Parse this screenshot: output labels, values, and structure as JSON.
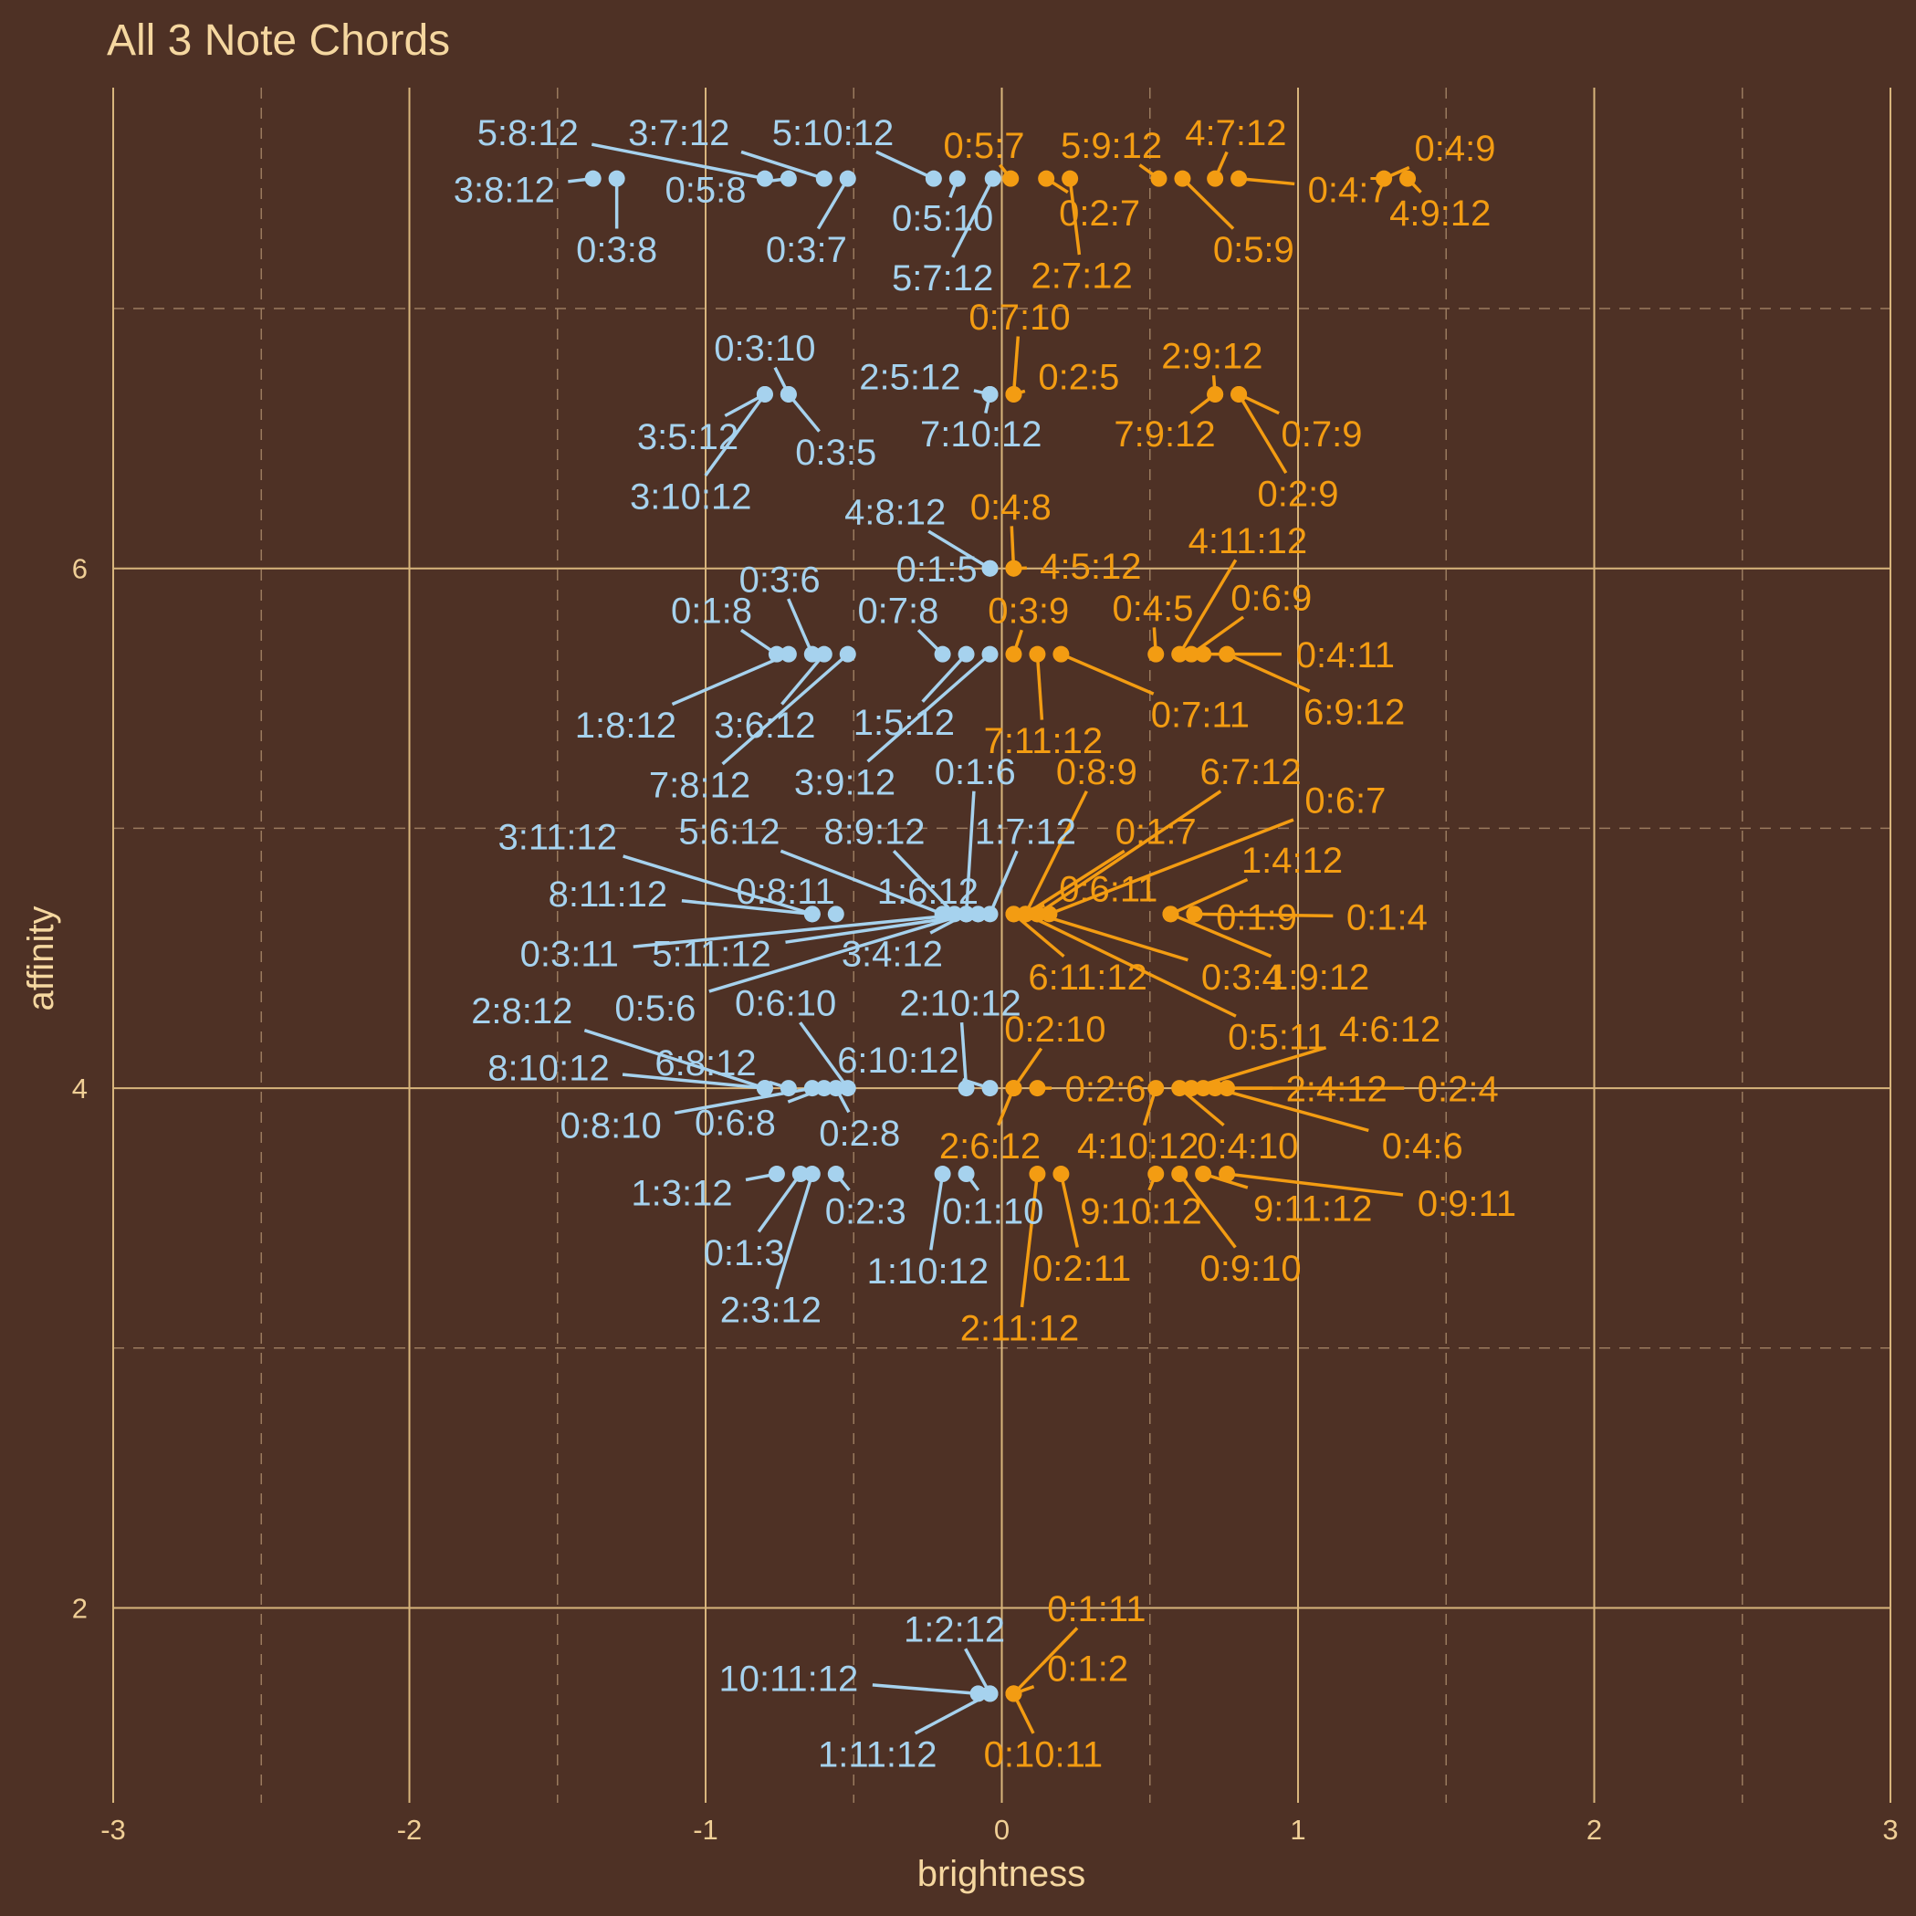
{
  "chart_data": {
    "type": "scatter",
    "title": "All 3 Note Chords",
    "xlabel": "brightness",
    "ylabel": "affinity",
    "xlim": [
      -3,
      3
    ],
    "ylim": [
      1.25,
      7.85
    ],
    "x_ticks": [
      -3,
      -2,
      -1,
      0,
      1,
      2,
      3
    ],
    "y_ticks": [
      2,
      4,
      6
    ],
    "grid": true,
    "legend": "none",
    "colors": {
      "background": "#4e3125",
      "grid_major": "#d8b57c",
      "grid_minor": "#9a7a5e",
      "text": "#f5d7a0",
      "negative": "#a6d2ee",
      "positive": "#f39c12"
    },
    "points": [
      {
        "label": "3:8:12",
        "x": -1.38,
        "y": 7.5,
        "c": "n",
        "lx": -1.68,
        "ly": 7.46
      },
      {
        "label": "0:3:8",
        "x": -1.3,
        "y": 7.5,
        "c": "n",
        "lx": -1.3,
        "ly": 7.23
      },
      {
        "label": "5:8:12",
        "x": -0.8,
        "y": 7.5,
        "c": "n",
        "lx": -1.6,
        "ly": 7.68
      },
      {
        "label": "0:5:8",
        "x": -0.72,
        "y": 7.5,
        "c": "n",
        "lx": -1.0,
        "ly": 7.46
      },
      {
        "label": "3:7:12",
        "x": -0.6,
        "y": 7.5,
        "c": "n",
        "lx": -1.09,
        "ly": 7.68
      },
      {
        "label": "0:3:7",
        "x": -0.52,
        "y": 7.5,
        "c": "n",
        "lx": -0.66,
        "ly": 7.23
      },
      {
        "label": "5:10:12",
        "x": -0.23,
        "y": 7.5,
        "c": "n",
        "lx": -0.57,
        "ly": 7.68
      },
      {
        "label": "0:5:10",
        "x": -0.15,
        "y": 7.5,
        "c": "n",
        "lx": -0.2,
        "ly": 7.35
      },
      {
        "label": "5:7:12",
        "x": -0.03,
        "y": 7.5,
        "c": "n",
        "lx": -0.2,
        "ly": 7.12
      },
      {
        "label": "0:5:7",
        "x": 0.03,
        "y": 7.5,
        "c": "p",
        "lx": -0.06,
        "ly": 7.63
      },
      {
        "label": "0:2:7",
        "x": 0.15,
        "y": 7.5,
        "c": "p",
        "lx": 0.33,
        "ly": 7.37
      },
      {
        "label": "2:7:12",
        "x": 0.23,
        "y": 7.5,
        "c": "p",
        "lx": 0.27,
        "ly": 7.13
      },
      {
        "label": "5:9:12",
        "x": 0.53,
        "y": 7.5,
        "c": "p",
        "lx": 0.37,
        "ly": 7.63
      },
      {
        "label": "0:5:9",
        "x": 0.61,
        "y": 7.5,
        "c": "p",
        "lx": 0.85,
        "ly": 7.23
      },
      {
        "label": "4:7:12",
        "x": 0.72,
        "y": 7.5,
        "c": "p",
        "lx": 0.79,
        "ly": 7.68
      },
      {
        "label": "0:4:7",
        "x": 0.8,
        "y": 7.5,
        "c": "p",
        "lx": 1.17,
        "ly": 7.46
      },
      {
        "label": "0:4:9",
        "x": 1.29,
        "y": 7.5,
        "c": "p",
        "lx": 1.53,
        "ly": 7.62
      },
      {
        "label": "4:9:12",
        "x": 1.37,
        "y": 7.5,
        "c": "p",
        "lx": 1.48,
        "ly": 7.37
      },
      {
        "label": "3:5:12",
        "x": -0.8,
        "y": 6.67,
        "c": "n",
        "lx": -1.06,
        "ly": 6.51
      },
      {
        "label": "3:10:12",
        "x": -0.8,
        "y": 6.67,
        "c": "n",
        "lx": -1.05,
        "ly": 6.28
      },
      {
        "label": "0:3:10",
        "x": -0.72,
        "y": 6.67,
        "c": "n",
        "lx": -0.8,
        "ly": 6.85
      },
      {
        "label": "0:3:5",
        "x": -0.72,
        "y": 6.67,
        "c": "n",
        "lx": -0.56,
        "ly": 6.45
      },
      {
        "label": "2:5:12",
        "x": -0.04,
        "y": 6.67,
        "c": "n",
        "lx": -0.31,
        "ly": 6.74
      },
      {
        "label": "7:10:12",
        "x": -0.04,
        "y": 6.67,
        "c": "n",
        "lx": -0.07,
        "ly": 6.52
      },
      {
        "label": "0:7:10",
        "x": 0.04,
        "y": 6.67,
        "c": "p",
        "lx": 0.06,
        "ly": 6.97
      },
      {
        "label": "0:2:5",
        "x": 0.04,
        "y": 6.67,
        "c": "p",
        "lx": 0.26,
        "ly": 6.74
      },
      {
        "label": "2:9:12",
        "x": 0.72,
        "y": 6.67,
        "c": "p",
        "lx": 0.71,
        "ly": 6.82
      },
      {
        "label": "7:9:12",
        "x": 0.72,
        "y": 6.67,
        "c": "p",
        "lx": 0.55,
        "ly": 6.52
      },
      {
        "label": "0:7:9",
        "x": 0.8,
        "y": 6.67,
        "c": "p",
        "lx": 1.08,
        "ly": 6.52
      },
      {
        "label": "0:2:9",
        "x": 0.8,
        "y": 6.67,
        "c": "p",
        "lx": 1.0,
        "ly": 6.29
      },
      {
        "label": "4:8:12",
        "x": -0.04,
        "y": 6.0,
        "c": "n",
        "lx": -0.36,
        "ly": 6.22
      },
      {
        "label": "0:1:5",
        "x": -0.04,
        "y": 6.0,
        "c": "n",
        "lx": -0.22,
        "ly": 6.0
      },
      {
        "label": "0:4:8",
        "x": 0.04,
        "y": 6.0,
        "c": "p",
        "lx": 0.03,
        "ly": 6.24
      },
      {
        "label": "4:5:12",
        "x": 0.04,
        "y": 6.0,
        "c": "p",
        "lx": 0.3,
        "ly": 6.01
      },
      {
        "label": "0:1:8",
        "x": -0.76,
        "y": 5.67,
        "c": "n",
        "lx": -0.98,
        "ly": 5.84
      },
      {
        "label": "1:8:12",
        "x": -0.72,
        "y": 5.67,
        "c": "n",
        "lx": -1.27,
        "ly": 5.4
      },
      {
        "label": "0:3:6",
        "x": -0.64,
        "y": 5.67,
        "c": "n",
        "lx": -0.75,
        "ly": 5.96
      },
      {
        "label": "3:6:12",
        "x": -0.6,
        "y": 5.67,
        "c": "n",
        "lx": -0.8,
        "ly": 5.4
      },
      {
        "label": "7:8:12",
        "x": -0.52,
        "y": 5.67,
        "c": "n",
        "lx": -1.02,
        "ly": 5.17
      },
      {
        "label": "0:7:8",
        "x": -0.2,
        "y": 5.67,
        "c": "n",
        "lx": -0.35,
        "ly": 5.84
      },
      {
        "label": "1:5:12",
        "x": -0.12,
        "y": 5.67,
        "c": "n",
        "lx": -0.33,
        "ly": 5.41
      },
      {
        "label": "3:9:12",
        "x": -0.04,
        "y": 5.67,
        "c": "n",
        "lx": -0.53,
        "ly": 5.18
      },
      {
        "label": "0:3:9",
        "x": 0.04,
        "y": 5.67,
        "c": "p",
        "lx": 0.09,
        "ly": 5.84
      },
      {
        "label": "7:11:12",
        "x": 0.12,
        "y": 5.67,
        "c": "p",
        "lx": 0.14,
        "ly": 5.34
      },
      {
        "label": "0:7:11",
        "x": 0.2,
        "y": 5.67,
        "c": "p",
        "lx": 0.67,
        "ly": 5.44
      },
      {
        "label": "0:4:5",
        "x": 0.52,
        "y": 5.67,
        "c": "p",
        "lx": 0.51,
        "ly": 5.85
      },
      {
        "label": "4:11:12",
        "x": 0.6,
        "y": 5.67,
        "c": "p",
        "lx": 0.83,
        "ly": 6.11
      },
      {
        "label": "0:6:9",
        "x": 0.64,
        "y": 5.67,
        "c": "p",
        "lx": 0.91,
        "ly": 5.89
      },
      {
        "label": "0:4:11",
        "x": 0.68,
        "y": 5.67,
        "c": "p",
        "lx": 1.16,
        "ly": 5.67
      },
      {
        "label": "6:9:12",
        "x": 0.76,
        "y": 5.67,
        "c": "p",
        "lx": 1.19,
        "ly": 5.45
      },
      {
        "label": "0:1:6",
        "x": -0.12,
        "y": 4.67,
        "c": "n",
        "lx": -0.09,
        "ly": 5.22
      },
      {
        "label": "1:7:12",
        "x": -0.04,
        "y": 4.67,
        "c": "n",
        "lx": 0.08,
        "ly": 4.99
      },
      {
        "label": "8:9:12",
        "x": -0.16,
        "y": 4.67,
        "c": "n",
        "lx": -0.43,
        "ly": 4.99
      },
      {
        "label": "5:6:12",
        "x": -0.2,
        "y": 4.67,
        "c": "n",
        "lx": -0.92,
        "ly": 4.99
      },
      {
        "label": "3:11:12",
        "x": -0.64,
        "y": 4.67,
        "c": "n",
        "lx": -1.5,
        "ly": 4.97
      },
      {
        "label": "1:6:12",
        "x": -0.08,
        "y": 4.67,
        "c": "n",
        "lx": -0.25,
        "ly": 4.76
      },
      {
        "label": "8:11:12",
        "x": -0.64,
        "y": 4.67,
        "c": "n",
        "lx": -1.33,
        "ly": 4.75
      },
      {
        "label": "0:8:11",
        "x": -0.56,
        "y": 4.67,
        "c": "n",
        "lx": -0.73,
        "ly": 4.76
      },
      {
        "label": "0:3:11",
        "x": -0.12,
        "y": 4.67,
        "c": "n",
        "lx": -1.46,
        "ly": 4.52
      },
      {
        "label": "5:11:12",
        "x": -0.08,
        "y": 4.67,
        "c": "n",
        "lx": -0.98,
        "ly": 4.52
      },
      {
        "label": "3:4:12",
        "x": -0.12,
        "y": 4.67,
        "c": "n",
        "lx": -0.37,
        "ly": 4.52
      },
      {
        "label": "0:5:6",
        "x": -0.12,
        "y": 4.67,
        "c": "n",
        "lx": -1.17,
        "ly": 4.31
      },
      {
        "label": "0:8:9",
        "x": 0.08,
        "y": 4.67,
        "c": "p",
        "lx": 0.32,
        "ly": 5.22
      },
      {
        "label": "6:7:12",
        "x": 0.12,
        "y": 4.67,
        "c": "p",
        "lx": 0.84,
        "ly": 5.22
      },
      {
        "label": "0:6:7",
        "x": 0.16,
        "y": 4.67,
        "c": "p",
        "lx": 1.16,
        "ly": 5.11
      },
      {
        "label": "0:1:7",
        "x": 0.08,
        "y": 4.67,
        "c": "p",
        "lx": 0.52,
        "ly": 4.99
      },
      {
        "label": "0:6:11",
        "x": 0.04,
        "y": 4.67,
        "c": "p",
        "lx": 0.36,
        "ly": 4.77
      },
      {
        "label": "6:11:12",
        "x": 0.04,
        "y": 4.67,
        "c": "p",
        "lx": 0.29,
        "ly": 4.43
      },
      {
        "label": "0:3:4",
        "x": 0.12,
        "y": 4.67,
        "c": "p",
        "lx": 0.81,
        "ly": 4.43
      },
      {
        "label": "0:5:11",
        "x": 0.08,
        "y": 4.67,
        "c": "p",
        "lx": 0.93,
        "ly": 4.2
      },
      {
        "label": "1:4:12",
        "x": 0.57,
        "y": 4.67,
        "c": "p",
        "lx": 0.98,
        "ly": 4.88
      },
      {
        "label": "0:1:9",
        "x": 0.65,
        "y": 4.67,
        "c": "p",
        "lx": 0.86,
        "ly": 4.66
      },
      {
        "label": "0:1:4",
        "x": 0.65,
        "y": 4.67,
        "c": "p",
        "lx": 1.3,
        "ly": 4.66
      },
      {
        "label": "1:9:12",
        "x": 0.57,
        "y": 4.67,
        "c": "p",
        "lx": 1.07,
        "ly": 4.43
      },
      {
        "label": "2:8:12",
        "x": -0.8,
        "y": 4.0,
        "c": "n",
        "lx": -1.62,
        "ly": 4.3
      },
      {
        "label": "8:10:12",
        "x": -0.8,
        "y": 4.0,
        "c": "n",
        "lx": -1.53,
        "ly": 4.08
      },
      {
        "label": "6:8:12",
        "x": -0.72,
        "y": 4.0,
        "c": "n",
        "lx": -1.0,
        "ly": 4.1
      },
      {
        "label": "0:8:10",
        "x": -0.64,
        "y": 4.0,
        "c": "n",
        "lx": -1.32,
        "ly": 3.86
      },
      {
        "label": "0:6:8",
        "x": -0.6,
        "y": 4.0,
        "c": "n",
        "lx": -0.9,
        "ly": 3.87
      },
      {
        "label": "0:6:10",
        "x": -0.52,
        "y": 4.0,
        "c": "n",
        "lx": -0.73,
        "ly": 4.33
      },
      {
        "label": "0:2:8",
        "x": -0.56,
        "y": 4.0,
        "c": "n",
        "lx": -0.48,
        "ly": 3.83
      },
      {
        "label": "2:10:12",
        "x": -0.12,
        "y": 4.0,
        "c": "n",
        "lx": -0.14,
        "ly": 4.33
      },
      {
        "label": "6:10:12",
        "x": -0.04,
        "y": 4.0,
        "c": "n",
        "lx": -0.35,
        "ly": 4.11
      },
      {
        "label": "0:2:10",
        "x": 0.04,
        "y": 4.0,
        "c": "p",
        "lx": 0.18,
        "ly": 4.23
      },
      {
        "label": "2:6:12",
        "x": 0.04,
        "y": 4.0,
        "c": "p",
        "lx": -0.04,
        "ly": 3.78
      },
      {
        "label": "0:2:6",
        "x": 0.12,
        "y": 4.0,
        "c": "p",
        "lx": 0.35,
        "ly": 4.0
      },
      {
        "label": "4:10:12",
        "x": 0.52,
        "y": 4.0,
        "c": "p",
        "lx": 0.46,
        "ly": 3.78
      },
      {
        "label": "0:4:10",
        "x": 0.6,
        "y": 4.0,
        "c": "p",
        "lx": 0.83,
        "ly": 3.78
      },
      {
        "label": "2:4:12",
        "x": 0.68,
        "y": 4.0,
        "c": "p",
        "lx": 1.13,
        "ly": 4.0
      },
      {
        "label": "0:2:4",
        "x": 0.76,
        "y": 4.0,
        "c": "p",
        "lx": 1.54,
        "ly": 4.0
      },
      {
        "label": "4:6:12",
        "x": 0.64,
        "y": 4.0,
        "c": "p",
        "lx": 1.31,
        "ly": 4.23
      },
      {
        "label": "0:4:6",
        "x": 0.72,
        "y": 4.0,
        "c": "p",
        "lx": 1.42,
        "ly": 3.78
      },
      {
        "label": "1:3:12",
        "x": -0.76,
        "y": 3.67,
        "c": "n",
        "lx": -1.08,
        "ly": 3.6
      },
      {
        "label": "0:1:3",
        "x": -0.68,
        "y": 3.67,
        "c": "n",
        "lx": -0.87,
        "ly": 3.37
      },
      {
        "label": "2:3:12",
        "x": -0.64,
        "y": 3.67,
        "c": "n",
        "lx": -0.78,
        "ly": 3.15
      },
      {
        "label": "0:2:3",
        "x": -0.56,
        "y": 3.67,
        "c": "n",
        "lx": -0.46,
        "ly": 3.53
      },
      {
        "label": "1:10:12",
        "x": -0.2,
        "y": 3.67,
        "c": "n",
        "lx": -0.25,
        "ly": 3.3
      },
      {
        "label": "0:1:10",
        "x": -0.12,
        "y": 3.67,
        "c": "n",
        "lx": -0.03,
        "ly": 3.53
      },
      {
        "label": "2:11:12",
        "x": 0.12,
        "y": 3.67,
        "c": "p",
        "lx": 0.06,
        "ly": 3.08
      },
      {
        "label": "0:2:11",
        "x": 0.2,
        "y": 3.67,
        "c": "p",
        "lx": 0.27,
        "ly": 3.31
      },
      {
        "label": "9:10:12",
        "x": 0.52,
        "y": 3.67,
        "c": "p",
        "lx": 0.47,
        "ly": 3.53
      },
      {
        "label": "0:9:10",
        "x": 0.6,
        "y": 3.67,
        "c": "p",
        "lx": 0.84,
        "ly": 3.31
      },
      {
        "label": "9:11:12",
        "x": 0.68,
        "y": 3.67,
        "c": "p",
        "lx": 1.05,
        "ly": 3.54
      },
      {
        "label": "0:9:11",
        "x": 0.76,
        "y": 3.67,
        "c": "p",
        "lx": 1.57,
        "ly": 3.56
      },
      {
        "label": "10:11:12",
        "x": -0.08,
        "y": 1.67,
        "c": "n",
        "lx": -0.72,
        "ly": 1.73
      },
      {
        "label": "1:2:12",
        "x": -0.04,
        "y": 1.67,
        "c": "n",
        "lx": -0.16,
        "ly": 1.92
      },
      {
        "label": "1:11:12",
        "x": -0.04,
        "y": 1.67,
        "c": "n",
        "lx": -0.42,
        "ly": 1.44
      },
      {
        "label": "0:1:11",
        "x": 0.04,
        "y": 1.67,
        "c": "p",
        "lx": 0.32,
        "ly": 2.0
      },
      {
        "label": "0:1:2",
        "x": 0.04,
        "y": 1.67,
        "c": "p",
        "lx": 0.29,
        "ly": 1.77
      },
      {
        "label": "0:10:11",
        "x": 0.04,
        "y": 1.67,
        "c": "p",
        "lx": 0.14,
        "ly": 1.44
      }
    ]
  }
}
